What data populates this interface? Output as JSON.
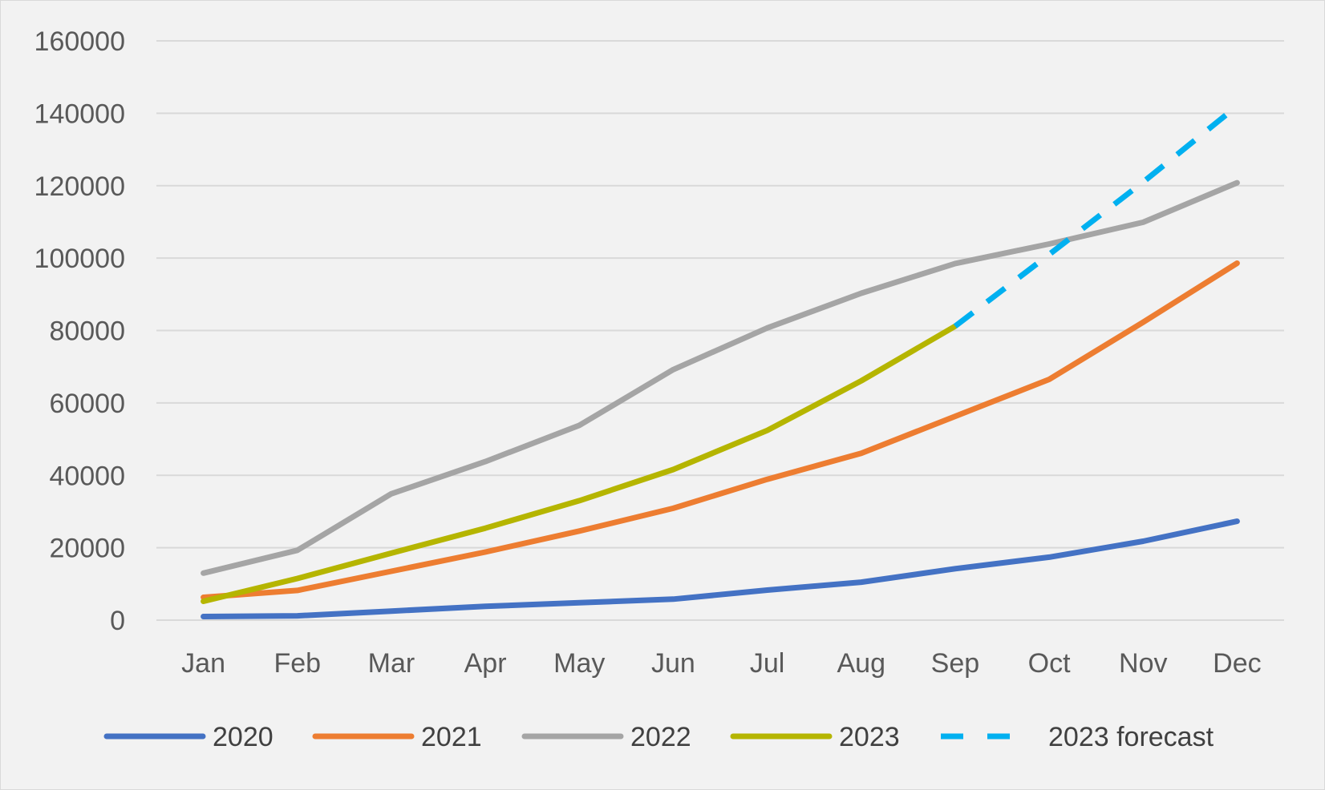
{
  "chart_data": {
    "type": "line",
    "categories": [
      "Jan",
      "Feb",
      "Mar",
      "Apr",
      "May",
      "Jun",
      "Jul",
      "Aug",
      "Sep",
      "Oct",
      "Nov",
      "Dec"
    ],
    "ylim": [
      0,
      160000
    ],
    "yticks": [
      0,
      20000,
      40000,
      60000,
      80000,
      100000,
      120000,
      140000,
      160000
    ],
    "ytick_labels": [
      "0",
      "20000",
      "40000",
      "60000",
      "80000",
      "100000",
      "120000",
      "140000",
      "160000"
    ],
    "grid": true,
    "legend_position": "bottom",
    "series": [
      {
        "name": "2020",
        "color": "#4472c4",
        "style": "solid",
        "values": [
          1000,
          1200,
          2500,
          3800,
          4800,
          5800,
          8300,
          10500,
          14200,
          17400,
          21800,
          27300
        ]
      },
      {
        "name": "2021",
        "color": "#ed7d31",
        "style": "solid",
        "values": [
          6300,
          8200,
          13500,
          18800,
          24600,
          30900,
          38900,
          46100,
          56300,
          66500,
          82300,
          98600
        ]
      },
      {
        "name": "2022",
        "color": "#a5a5a5",
        "style": "solid",
        "values": [
          13000,
          19300,
          34900,
          43800,
          53800,
          69200,
          80700,
          90300,
          98500,
          103900,
          109900,
          120800
        ]
      },
      {
        "name": "2023",
        "color": "#b5b500",
        "style": "solid",
        "values": [
          5200,
          11500,
          18500,
          25400,
          33000,
          41600,
          52400,
          66100,
          81200,
          null,
          null,
          null
        ]
      },
      {
        "name": "2023 forecast",
        "color": "#00b0f0",
        "style": "dashed",
        "values": [
          null,
          null,
          null,
          null,
          null,
          null,
          null,
          null,
          81200,
          101000,
          121000,
          142000
        ]
      }
    ]
  }
}
